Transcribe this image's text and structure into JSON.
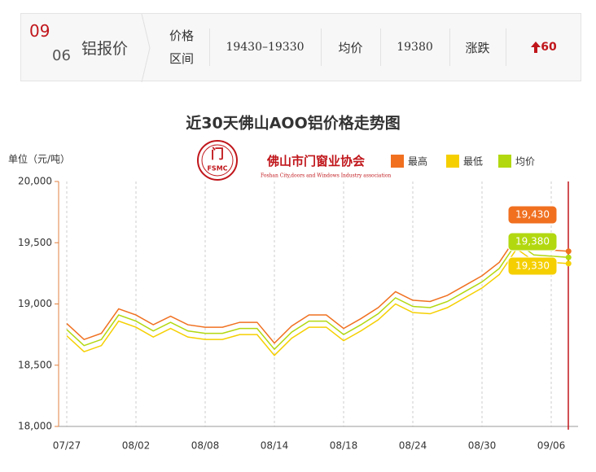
{
  "header": {
    "month": "09",
    "day": "06",
    "product": "铝报价",
    "range_label": [
      "价格",
      "区间"
    ],
    "range": "19430–19330",
    "avg_label": "均价",
    "avg": "19380",
    "change_label": "涨跌",
    "change": "60"
  },
  "chart_data": {
    "type": "line",
    "title": "近30天佛山AOO铝价格走势图",
    "y_label": "单位（元/吨）",
    "logo": {
      "abbr": "FSMC",
      "cn": "佛山市门窗业协会",
      "en": "Foshan City,doors and Windows Industry association"
    },
    "categories": [
      "07/27",
      null,
      null,
      null,
      "08/02",
      null,
      null,
      null,
      "08/08",
      null,
      null,
      null,
      "08/14",
      null,
      null,
      null,
      "08/18",
      null,
      null,
      null,
      "08/24",
      null,
      null,
      null,
      "08/30",
      null,
      null,
      null,
      "09/06",
      null
    ],
    "series": [
      {
        "name": "最高",
        "color": "#f07020",
        "values": [
          18840,
          18710,
          18760,
          18960,
          18910,
          18830,
          18900,
          18830,
          18810,
          18810,
          18850,
          18850,
          18680,
          18820,
          18910,
          18910,
          18800,
          18880,
          18970,
          19100,
          19030,
          19020,
          19070,
          19150,
          19230,
          19340,
          19550,
          19450,
          19440,
          19430
        ],
        "value_labels": [
          null,
          null,
          null,
          null,
          null,
          null,
          null,
          null,
          null,
          null,
          null,
          null,
          null,
          null,
          null,
          null,
          null,
          null,
          null,
          null,
          null,
          null,
          null,
          null,
          null,
          null,
          null,
          null,
          null,
          "19,430"
        ]
      },
      {
        "name": "最低",
        "color": "#f5cf00",
        "values": [
          18740,
          18610,
          18660,
          18860,
          18810,
          18730,
          18800,
          18730,
          18710,
          18710,
          18750,
          18750,
          18580,
          18720,
          18810,
          18810,
          18700,
          18780,
          18870,
          19000,
          18930,
          18920,
          18970,
          19050,
          19130,
          19240,
          19450,
          19350,
          19340,
          19330
        ],
        "value_labels": [
          null,
          null,
          null,
          null,
          null,
          null,
          null,
          null,
          null,
          null,
          null,
          null,
          null,
          null,
          null,
          null,
          null,
          null,
          null,
          null,
          null,
          null,
          null,
          null,
          null,
          null,
          null,
          null,
          null,
          "19,330"
        ]
      },
      {
        "name": "均价",
        "color": "#b2d810",
        "values": [
          18790,
          18660,
          18710,
          18910,
          18860,
          18780,
          18850,
          18780,
          18760,
          18760,
          18800,
          18800,
          18630,
          18770,
          18860,
          18860,
          18750,
          18830,
          18920,
          19050,
          18980,
          18970,
          19020,
          19100,
          19180,
          19290,
          19500,
          19400,
          19390,
          19380
        ],
        "value_labels": [
          null,
          null,
          null,
          null,
          null,
          null,
          null,
          null,
          null,
          null,
          null,
          null,
          null,
          null,
          null,
          null,
          null,
          null,
          null,
          null,
          null,
          null,
          null,
          null,
          null,
          null,
          null,
          null,
          null,
          "19,380"
        ]
      }
    ],
    "ylim": [
      18000,
      20000
    ],
    "yticks": [
      {
        "value": 18000,
        "label": "18,000"
      },
      {
        "value": 18500,
        "label": "18,500"
      },
      {
        "value": 19000,
        "label": "19,000"
      },
      {
        "value": 19500,
        "label": "19,500"
      },
      {
        "value": 20000,
        "label": "20,000"
      }
    ],
    "grid": true
  }
}
